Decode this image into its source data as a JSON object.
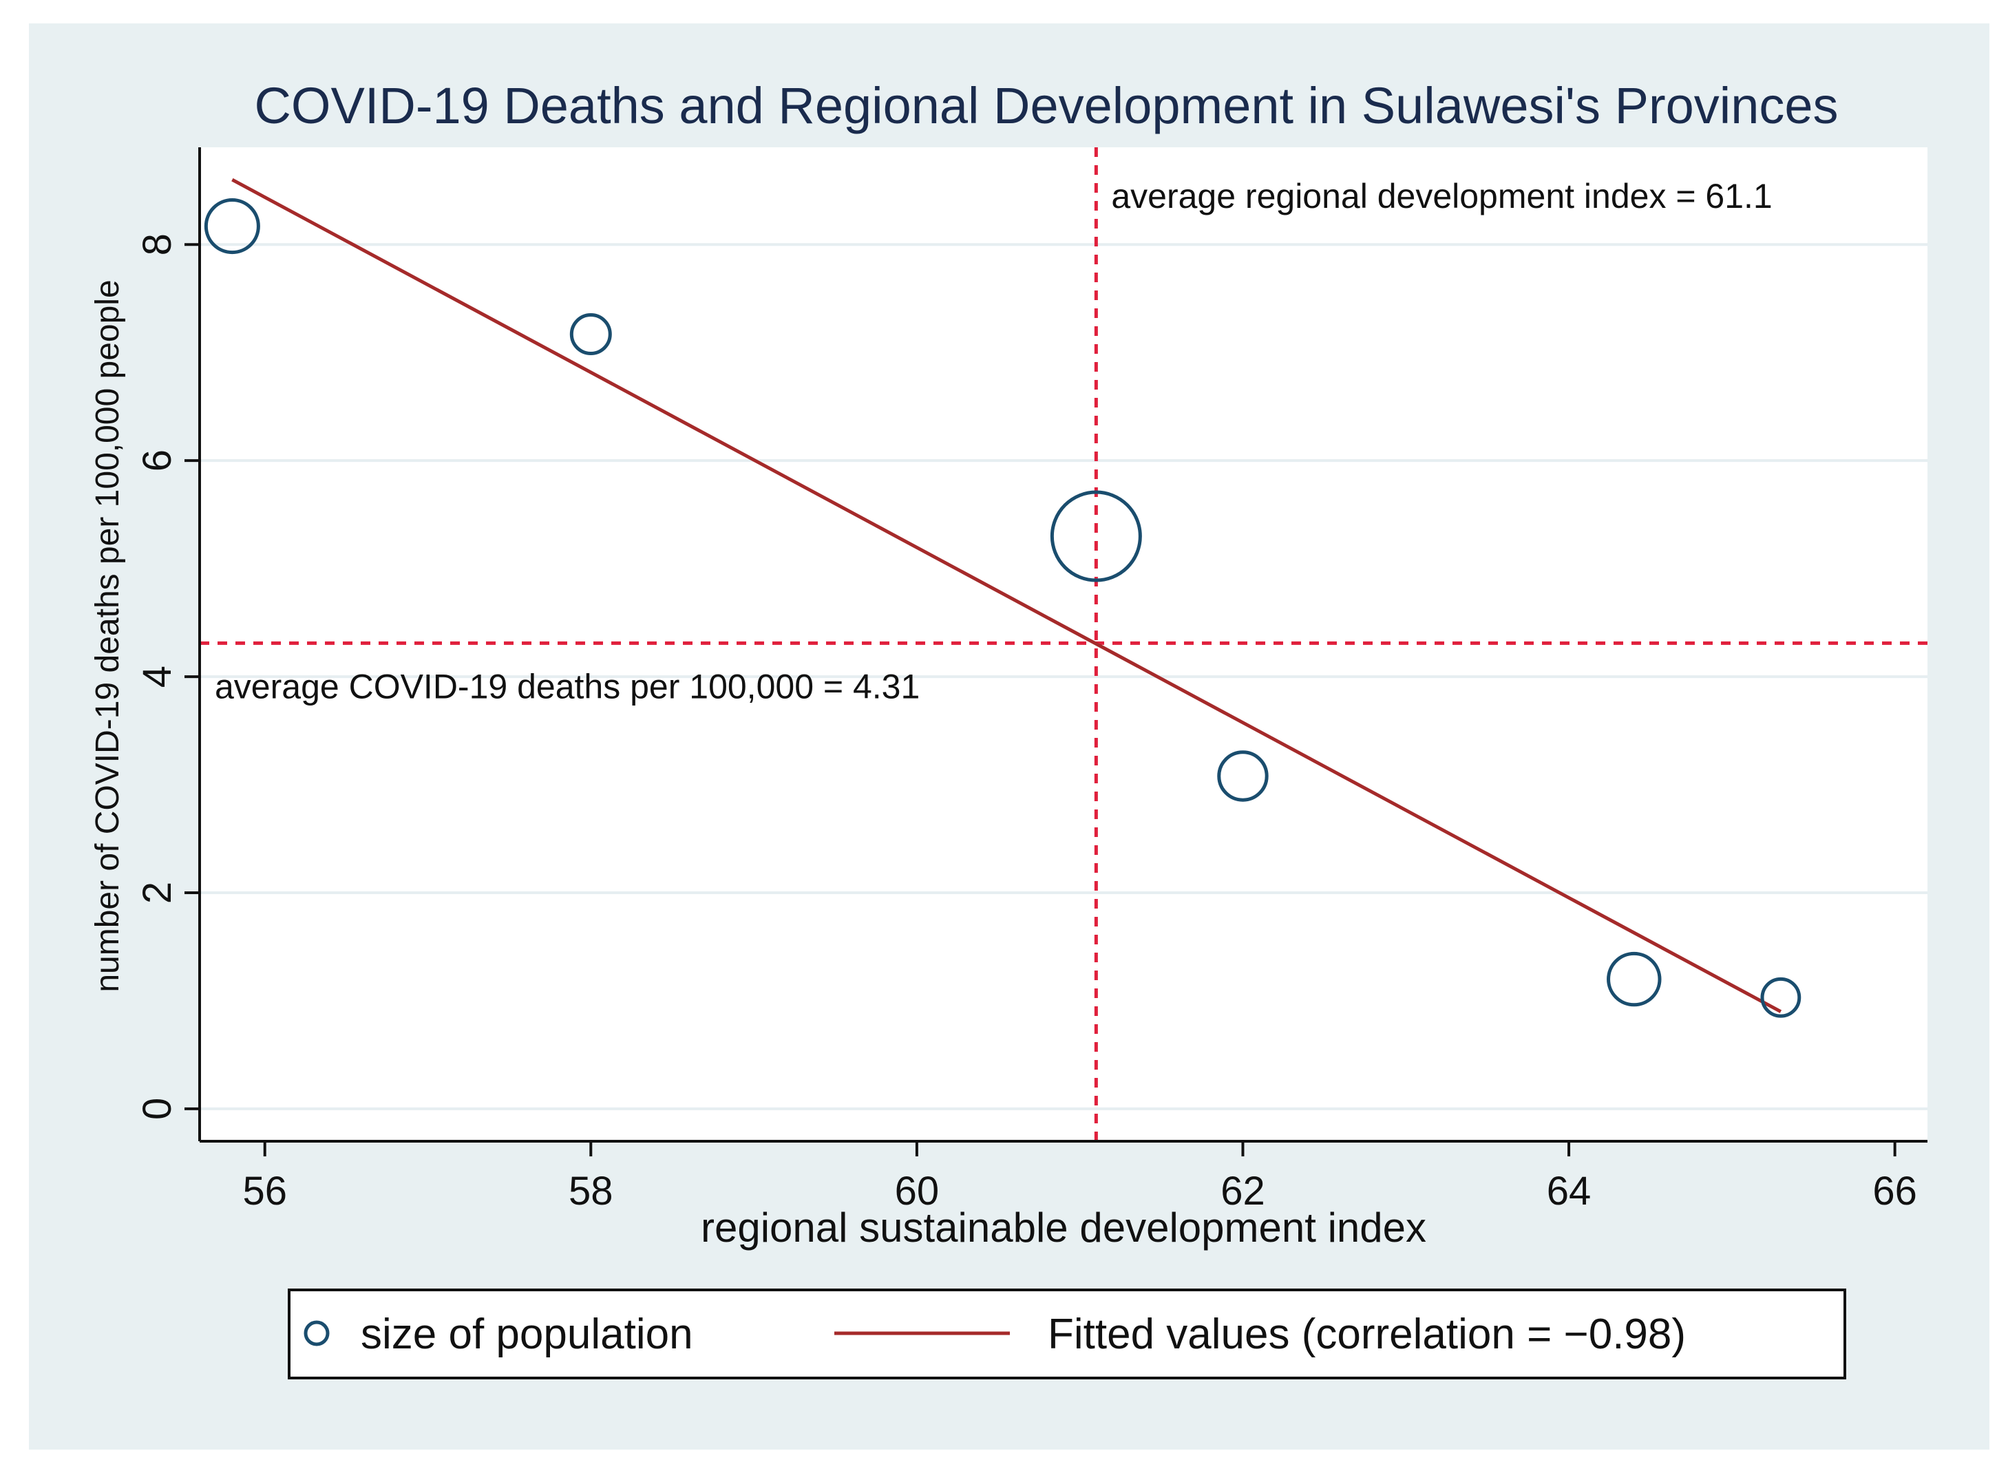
{
  "chart_data": {
    "type": "scatter",
    "title": "COVID-19 Deaths and Regional Development in Sulawesi's Provinces",
    "xlabel": "regional sustainable development index",
    "ylabel": "number of COVID-19 deaths per 100,000 people",
    "xlim": [
      55.6,
      66.2
    ],
    "ylim": [
      -0.3,
      8.9
    ],
    "xticks": [
      "56",
      "58",
      "60",
      "62",
      "64",
      "66"
    ],
    "yticks": [
      "0",
      "2",
      "4",
      "6",
      "8"
    ],
    "grid": true,
    "series": [
      {
        "name": "size of population",
        "kind": "scatter-bubble",
        "x": [
          55.8,
          58.0,
          61.1,
          62.0,
          64.4,
          65.3
        ],
        "y": [
          8.17,
          7.17,
          5.3,
          3.08,
          1.2,
          1.03
        ],
        "size": [
          2.4,
          1.3,
          6.8,
          2.0,
          2.3,
          1.2
        ],
        "color": "#1a4d6e"
      },
      {
        "name": "Fitted values (correlation = −0.98)",
        "kind": "line",
        "x": [
          55.8,
          65.3
        ],
        "y": [
          8.6,
          0.9
        ],
        "color": "#a52a2a"
      }
    ],
    "reference_lines": [
      {
        "axis": "x",
        "value": 61.1,
        "label": "average regional development index = 61.1",
        "color": "#e0203c"
      },
      {
        "axis": "y",
        "value": 4.31,
        "label": "average COVID-19 deaths per 100,000 = 4.31",
        "color": "#e0203c"
      }
    ],
    "legend": {
      "position": "bottom",
      "items": [
        "size of population",
        "Fitted values (correlation = −0.98)"
      ]
    }
  }
}
